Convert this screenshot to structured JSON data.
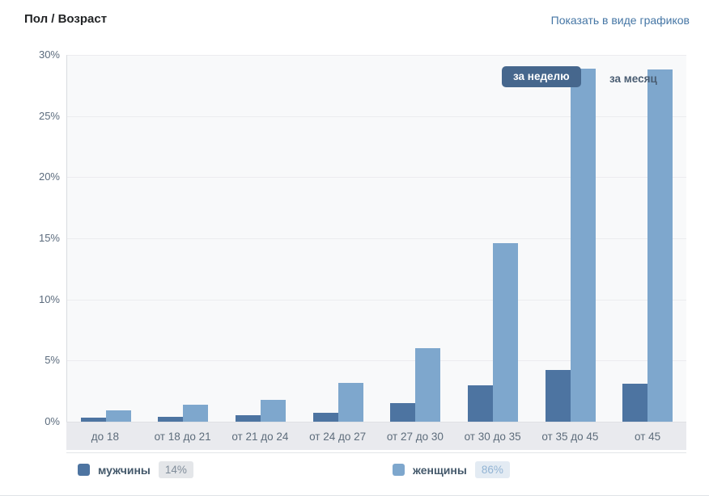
{
  "header": {
    "title": "Пол / Возраст",
    "link": "Показать в виде графиков"
  },
  "tabs": {
    "week": "за неделю",
    "month": "за месяц"
  },
  "legend": {
    "men_label": "мужчины",
    "men_total": "14%",
    "women_label": "женщины",
    "women_total": "86%"
  },
  "colors": {
    "men": "#4d74a1",
    "women": "#7ea7cd",
    "link": "#4576a5",
    "tab_active_bg": "#46678d",
    "tab_active_text": "#ffffff"
  },
  "chart_data": {
    "type": "bar",
    "title": "Пол / Возраст",
    "categories": [
      "до 18",
      "от 18 до 21",
      "от 21 до 24",
      "от 24 до 27",
      "от 27 до 30",
      "от 30 до 35",
      "от 35 до 45",
      "от 45"
    ],
    "series": [
      {
        "name": "мужчины",
        "color": "#4d74a1",
        "values": [
          0.3,
          0.4,
          0.5,
          0.7,
          1.5,
          3.0,
          4.2,
          3.1
        ]
      },
      {
        "name": "женщины",
        "color": "#7ea7cd",
        "values": [
          0.9,
          1.4,
          1.8,
          3.2,
          6.0,
          14.6,
          28.9,
          28.8
        ]
      }
    ],
    "xlabel": "",
    "ylabel": "",
    "ylim": [
      0,
      30
    ],
    "ytick_step": 5,
    "ytick_labels": [
      "30%",
      "25%",
      "20%",
      "15%",
      "10%",
      "5%",
      "0%"
    ],
    "grid": true,
    "legend_position": "bottom"
  }
}
